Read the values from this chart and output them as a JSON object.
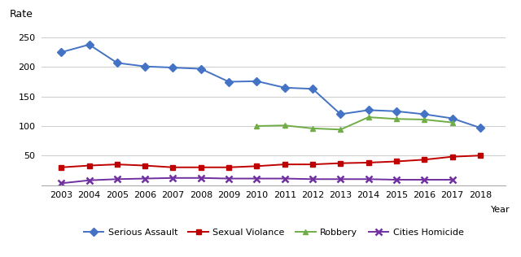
{
  "years": [
    2003,
    2004,
    2005,
    2006,
    2007,
    2008,
    2009,
    2010,
    2011,
    2012,
    2013,
    2014,
    2015,
    2016,
    2017,
    2018
  ],
  "serious_assault": [
    225,
    238,
    207,
    201,
    199,
    197,
    175,
    176,
    165,
    163,
    120,
    127,
    125,
    120,
    113,
    97
  ],
  "sexual_violance": [
    30,
    33,
    35,
    33,
    30,
    30,
    30,
    32,
    35,
    35,
    37,
    38,
    40,
    43,
    48,
    50
  ],
  "robbery": [
    null,
    null,
    null,
    null,
    null,
    null,
    null,
    100,
    101,
    96,
    94,
    115,
    112,
    111,
    106,
    null
  ],
  "cities_homicide": [
    3,
    8,
    10,
    11,
    12,
    12,
    11,
    11,
    11,
    10,
    10,
    10,
    9,
    9,
    9,
    null
  ],
  "series_colors": {
    "serious_assault": "#4472C4",
    "sexual_violance": "#C00000",
    "robbery": "#70AD47",
    "cities_homicide": "#7030A0"
  },
  "series_labels": {
    "serious_assault": "Serious Assault",
    "sexual_violance": "Sexual Violance",
    "robbery": "Robbery",
    "cities_homicide": "Cities Homicide"
  },
  "markers": {
    "serious_assault": "D",
    "sexual_violance": "s",
    "robbery": "^",
    "cities_homicide": "x"
  },
  "ylabel": "Rate",
  "xlabel": "Year",
  "ylim": [
    0,
    270
  ],
  "yticks": [
    50,
    100,
    150,
    200,
    250
  ],
  "background_color": "#ffffff",
  "grid_color": "#d0d0d0"
}
